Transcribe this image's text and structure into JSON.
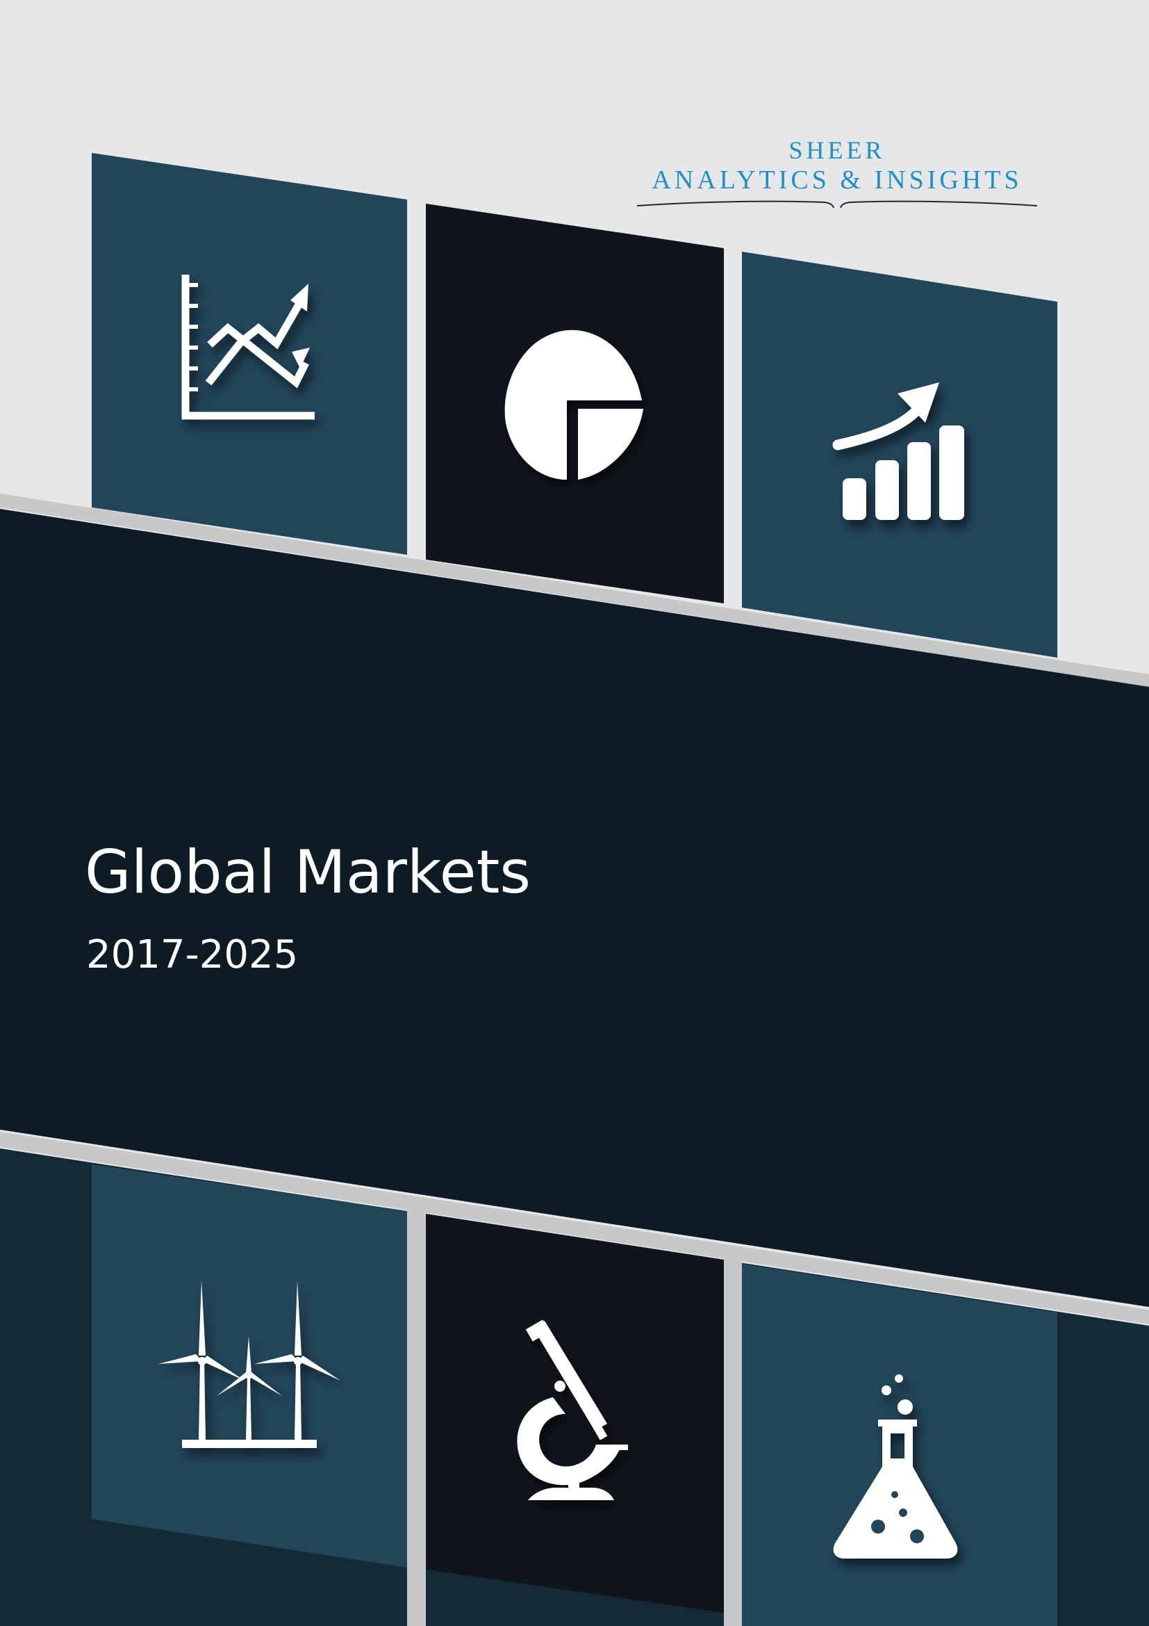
{
  "logo": {
    "line1": "SHEER",
    "line2": "ANALYTICS & INSIGHTS"
  },
  "cover": {
    "title": "Global Markets",
    "years": "2017-2025"
  },
  "colors": {
    "background": "#e6e7e9",
    "panel_blue": "#22455a",
    "panel_black": "#10151c",
    "band_dark": "#0c1b24",
    "divider_gray": "#c7c8c9",
    "logo_blue": "#1f8fc7",
    "icon_white": "#ffffff"
  },
  "icons": [
    "line-chart-icon",
    "pie-chart-icon",
    "bar-growth-icon",
    "wind-turbines-icon",
    "microscope-icon",
    "flask-icon"
  ]
}
